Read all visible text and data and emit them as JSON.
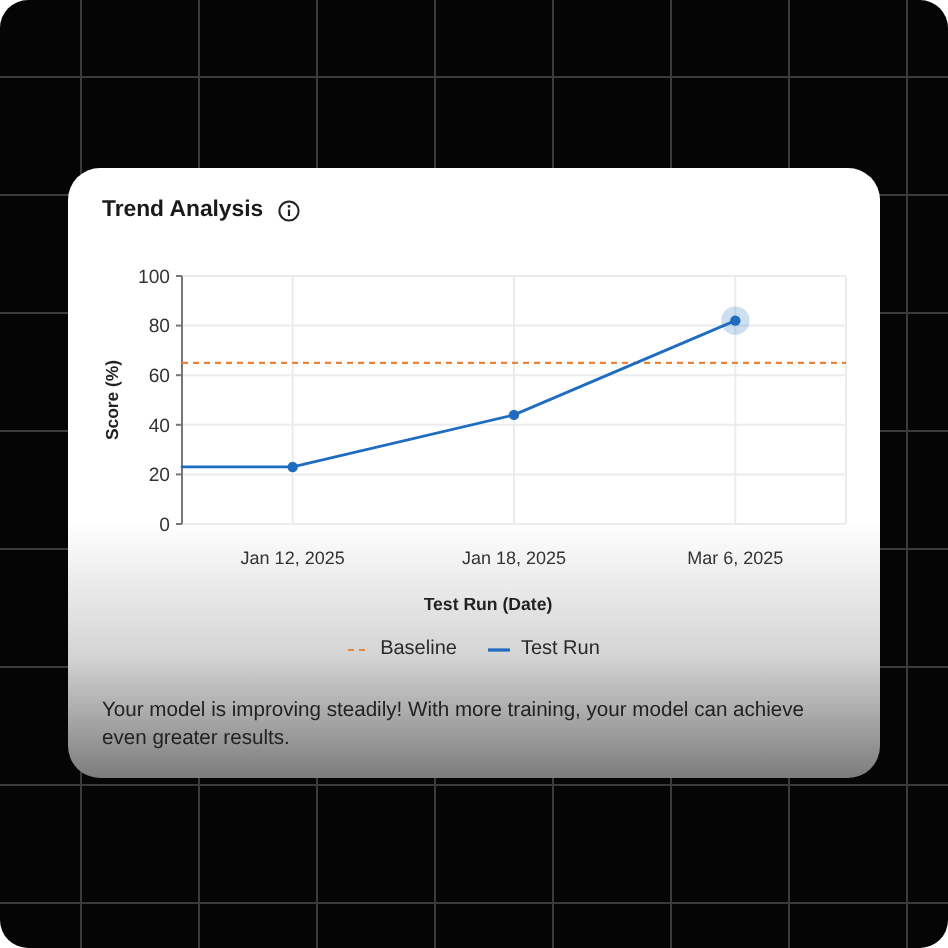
{
  "chart_data": {
    "type": "line",
    "title": "Trend Analysis",
    "xlabel": "Test Run (Date)",
    "ylabel": "Score (%)",
    "categories": [
      "Jan 12, 2025",
      "Jan 18, 2025",
      "Mar 6, 2025"
    ],
    "series": [
      {
        "name": "Test Run",
        "color": "#1f6cc0",
        "values": [
          23,
          44,
          82
        ]
      }
    ],
    "ylim": [
      0,
      100
    ],
    "yticks": [
      0,
      20,
      40,
      60,
      80,
      100
    ],
    "grid": true,
    "legend": "bottom",
    "marker": "circle",
    "line_style": "solid",
    "ref_lines": [
      {
        "axis": "y",
        "value": 65,
        "label": "Baseline",
        "color": "#e8843c",
        "line_style": "dashed"
      }
    ],
    "annotations": [
      "Your model is improving steadily! With more training, your model can achieve even greater results."
    ]
  }
}
